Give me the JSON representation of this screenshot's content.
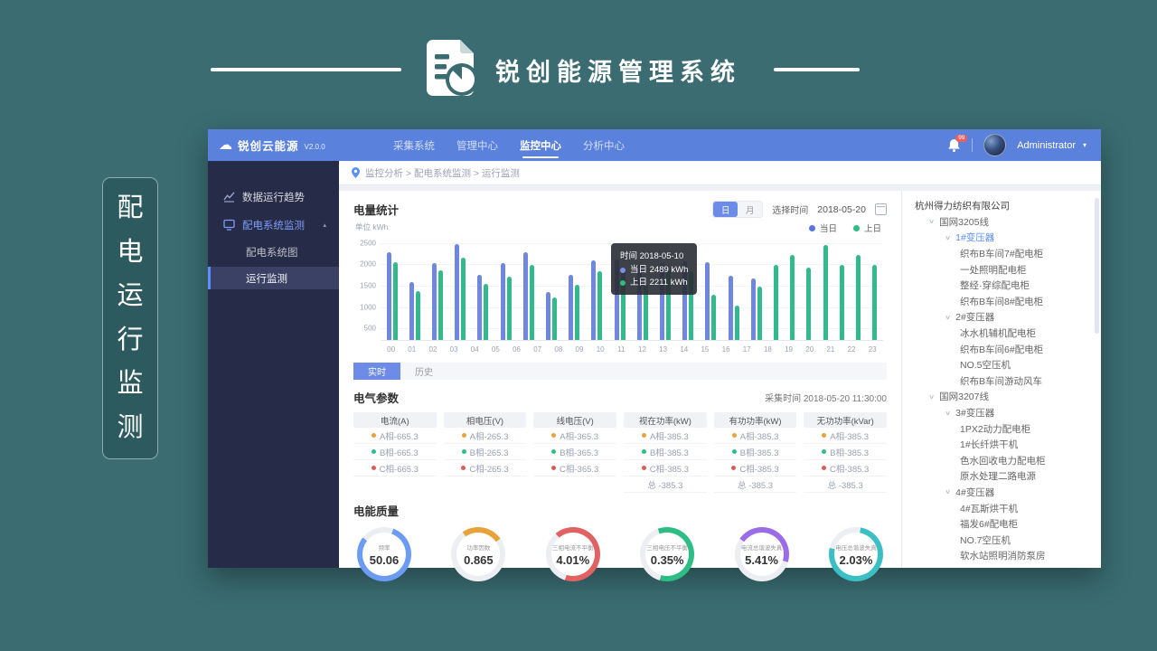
{
  "banner": {
    "title": "锐创能源管理系统"
  },
  "side_label": {
    "text": "配电运行监测"
  },
  "app": {
    "navbar": {
      "logo": {
        "name": "锐创云能源",
        "version": "V2.0.0"
      },
      "menu": [
        {
          "label": "采集系统",
          "active": false
        },
        {
          "label": "管理中心",
          "active": false
        },
        {
          "label": "监控中心",
          "active": true
        },
        {
          "label": "分析中心",
          "active": false
        }
      ],
      "notification_badge": "99",
      "user": {
        "name": "Administrator"
      }
    },
    "sidebar": {
      "items": [
        {
          "label": "数据运行趋势",
          "icon": "trend-icon",
          "level": 1,
          "active": false,
          "expanded": false,
          "selected": false
        },
        {
          "label": "配电系统监测",
          "icon": "distribution-icon",
          "level": 1,
          "active": true,
          "expanded": true,
          "selected": false
        },
        {
          "label": "配电系统图",
          "level": 2,
          "active": false,
          "expanded": false,
          "selected": false
        },
        {
          "label": "运行监测",
          "level": 2,
          "active": false,
          "expanded": false,
          "selected": true
        }
      ]
    },
    "breadcrumb": {
      "path": "监控分析 > 配电系统监测 > 运行监测"
    },
    "energy_stats": {
      "title": "电量统计",
      "unit_label": "单位  kWh",
      "period_toggle": [
        {
          "label": "日",
          "active": true
        },
        {
          "label": "月",
          "active": false
        }
      ],
      "date_label": "选择时间",
      "date_value": "2018-05-20",
      "legend": [
        {
          "label": "当日",
          "color": "#5B76D8"
        },
        {
          "label": "上日",
          "color": "#2EBD85"
        }
      ],
      "tooltip": {
        "time_label": "时间",
        "time_value": "2018-05-10",
        "rows": [
          {
            "label": "当日",
            "value": "2489 kWh",
            "color": "#7B8FE8"
          },
          {
            "label": "上日",
            "value": "2211 kWh",
            "color": "#2EBD85"
          }
        ]
      }
    },
    "chart_data": {
      "type": "bar",
      "title": "电量统计",
      "ylabel": "kWh",
      "x": [
        "00",
        "01",
        "02",
        "03",
        "04",
        "05",
        "06",
        "07",
        "08",
        "09",
        "10",
        "11",
        "12",
        "13",
        "14",
        "15",
        "16",
        "17",
        "18",
        "19",
        "20",
        "21",
        "22",
        "23"
      ],
      "series": [
        {
          "name": "当日",
          "color": "#6F87DE",
          "values": [
            2300,
            1600,
            2050,
            2500,
            1780,
            2050,
            2300,
            1380,
            1780,
            2120,
            2130,
            2000,
            2050,
            2100,
            2080,
            1750,
            1700,
            null,
            null,
            null,
            null,
            null,
            null,
            null
          ]
        },
        {
          "name": "上日",
          "color": "#33BA8C",
          "values": [
            2080,
            1400,
            1870,
            2180,
            1560,
            1730,
            2000,
            1250,
            1550,
            1850,
            1850,
            1550,
            1900,
            1850,
            1300,
            1050,
            1500,
            2000,
            2250,
            1950,
            2480,
            2000,
            2250,
            2000
          ]
        }
      ],
      "yticks": [
        500,
        1000,
        1500,
        2000,
        2500
      ],
      "ylim": [
        250,
        2600
      ],
      "grid": true,
      "legend_position": "top-right"
    },
    "tabs": [
      {
        "label": "实时",
        "active": true
      },
      {
        "label": "历史",
        "active": false
      }
    ],
    "electrical": {
      "title": "电气参数",
      "collect_label": "采集时间",
      "collect_value": "2018-05-20  11:30:00",
      "phase_colors": {
        "A": "#E6A23C",
        "B": "#2EBD85",
        "C": "#DD5A5A"
      },
      "columns": [
        {
          "header": "电流(A)",
          "rows": [
            {
              "phase": "A",
              "text": "A相-665.3"
            },
            {
              "phase": "B",
              "text": "B相-665.3"
            },
            {
              "phase": "C",
              "text": "C相-665.3"
            }
          ]
        },
        {
          "header": "相电压(V)",
          "rows": [
            {
              "phase": "A",
              "text": "A相-265.3"
            },
            {
              "phase": "B",
              "text": "B相-265.3"
            },
            {
              "phase": "C",
              "text": "C相-265.3"
            }
          ]
        },
        {
          "header": "线电压(V)",
          "rows": [
            {
              "phase": "A",
              "text": "A相-365.3"
            },
            {
              "phase": "B",
              "text": "B相-365.3"
            },
            {
              "phase": "C",
              "text": "C相-365.3"
            }
          ]
        },
        {
          "header": "视在功率(kW)",
          "rows": [
            {
              "phase": "A",
              "text": "A相-385.3"
            },
            {
              "phase": "B",
              "text": "B相-385.3"
            },
            {
              "phase": "C",
              "text": "C相-385.3"
            },
            {
              "text": "总 -385.3"
            }
          ]
        },
        {
          "header": "有功功率(kW)",
          "rows": [
            {
              "phase": "A",
              "text": "A相-385.3"
            },
            {
              "phase": "B",
              "text": "B相-385.3"
            },
            {
              "phase": "C",
              "text": "C相-385.3"
            },
            {
              "text": "总 -385.3"
            }
          ]
        },
        {
          "header": "无功功率(kVar)",
          "rows": [
            {
              "phase": "A",
              "text": "A相-385.3"
            },
            {
              "phase": "B",
              "text": "B相-385.3"
            },
            {
              "phase": "C",
              "text": "C相-385.3"
            },
            {
              "text": "总 -385.3"
            }
          ]
        }
      ]
    },
    "quality": {
      "title": "电能质量",
      "gauges": [
        {
          "label": "频率",
          "value": "50.06",
          "color": "#6B9BF2",
          "fraction": 0.8,
          "start": 20
        },
        {
          "label": "功率因数",
          "value": "0.865",
          "color": "#E8A23C",
          "fraction": 0.25,
          "start": -35
        },
        {
          "label": "三相电流不平衡",
          "value": "4.01%",
          "color": "#E06262",
          "fraction": 0.66,
          "start": -40
        },
        {
          "label": "三相电压不平衡",
          "value": "0.35%",
          "color": "#2EBD85",
          "fraction": 0.6,
          "start": -20
        },
        {
          "label": "电流总谐波失真",
          "value": "5.41%",
          "color": "#9A6CE8",
          "fraction": 0.45,
          "start": -55
        },
        {
          "label": "电压总谐波失真",
          "value": "2.03%",
          "color": "#3CBFC4",
          "fraction": 0.76,
          "start": 10
        }
      ]
    },
    "tree": {
      "items": [
        {
          "label": "杭州得力纺织有限公司",
          "level": 0,
          "caret": false,
          "selected": false
        },
        {
          "label": "国网3205线",
          "level": 1,
          "caret": true,
          "selected": false
        },
        {
          "label": "1#变压器",
          "level": 2,
          "caret": true,
          "selected": true
        },
        {
          "label": "织布B车间7#配电柜",
          "level": 3,
          "caret": false,
          "selected": false
        },
        {
          "label": "一处照明配电柜",
          "level": 3,
          "caret": false,
          "selected": false
        },
        {
          "label": "整经·穿综配电柜",
          "level": 3,
          "caret": false,
          "selected": false
        },
        {
          "label": "织布B车间8#配电柜",
          "level": 3,
          "caret": false,
          "selected": false
        },
        {
          "label": "2#变压器",
          "level": 2,
          "caret": true,
          "selected": false
        },
        {
          "label": "冰水机辅机配电柜",
          "level": 3,
          "caret": false,
          "selected": false
        },
        {
          "label": "织布B车间6#配电柜",
          "level": 3,
          "caret": false,
          "selected": false
        },
        {
          "label": "NO.5空压机",
          "level": 3,
          "caret": false,
          "selected": false
        },
        {
          "label": "织布B车间游动风车",
          "level": 3,
          "caret": false,
          "selected": false
        },
        {
          "label": "国网3207线",
          "level": 1,
          "caret": true,
          "selected": false
        },
        {
          "label": "3#变压器",
          "level": 2,
          "caret": true,
          "selected": false
        },
        {
          "label": "1PX2动力配电柜",
          "level": 3,
          "caret": false,
          "selected": false
        },
        {
          "label": "1#长纤烘干机",
          "level": 3,
          "caret": false,
          "selected": false
        },
        {
          "label": "色水回收电力配电柜",
          "level": 3,
          "caret": false,
          "selected": false
        },
        {
          "label": "原水处理二路电源",
          "level": 3,
          "caret": false,
          "selected": false
        },
        {
          "label": "4#变压器",
          "level": 2,
          "caret": true,
          "selected": false
        },
        {
          "label": "4#瓦斯烘干机",
          "level": 3,
          "caret": false,
          "selected": false
        },
        {
          "label": "福发6#配电柜",
          "level": 3,
          "caret": false,
          "selected": false
        },
        {
          "label": "NO.7空压机",
          "level": 3,
          "caret": false,
          "selected": false
        },
        {
          "label": "软水站照明消防泵房",
          "level": 3,
          "caret": false,
          "selected": false
        }
      ]
    }
  }
}
